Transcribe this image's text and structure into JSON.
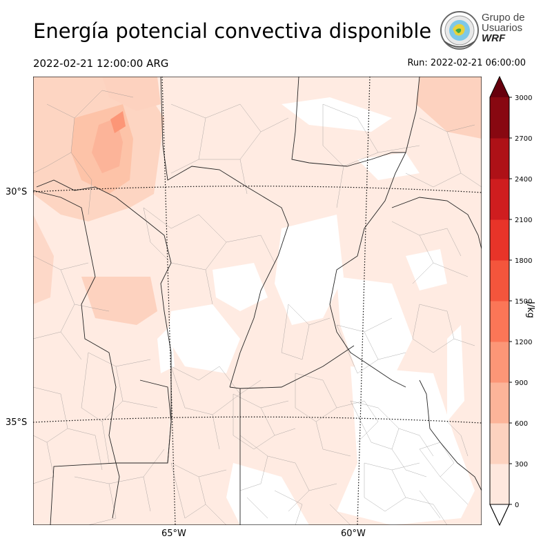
{
  "header": {
    "title": "Energía potencial convectiva disponible",
    "valid_time": "2022-02-21 12:00:00 ARG",
    "run_time": "Run: 2022-02-21 06:00:00"
  },
  "logo": {
    "line1": "Grupo de",
    "line2": "Usuarios",
    "line3": "WRF"
  },
  "map": {
    "lat_labels": [
      "30°S",
      "35°S"
    ],
    "lon_labels": [
      "65°W",
      "60°W"
    ]
  },
  "colorbar": {
    "label": "J/kg",
    "ticks": [
      "0",
      "300",
      "600",
      "900",
      "1200",
      "1500",
      "1800",
      "2100",
      "2400",
      "2700",
      "3000"
    ],
    "colors": [
      "#fee8de",
      "#fdd2bf",
      "#fcb499",
      "#fc9677",
      "#fb7657",
      "#f4553c",
      "#e83429",
      "#cf1d1f",
      "#ae1117",
      "#880811"
    ],
    "over_color": "#67000d"
  },
  "chart_data": {
    "type": "heatmap",
    "variable": "CAPE",
    "units": "J/kg",
    "levels": [
      0,
      300,
      600,
      900,
      1200,
      1500,
      1800,
      2100,
      2400,
      2700,
      3000
    ],
    "extend": "both",
    "approx_lat_range": [
      -38.5,
      -27
    ],
    "approx_lon_range": [
      -68.8,
      -56.3
    ]
  }
}
